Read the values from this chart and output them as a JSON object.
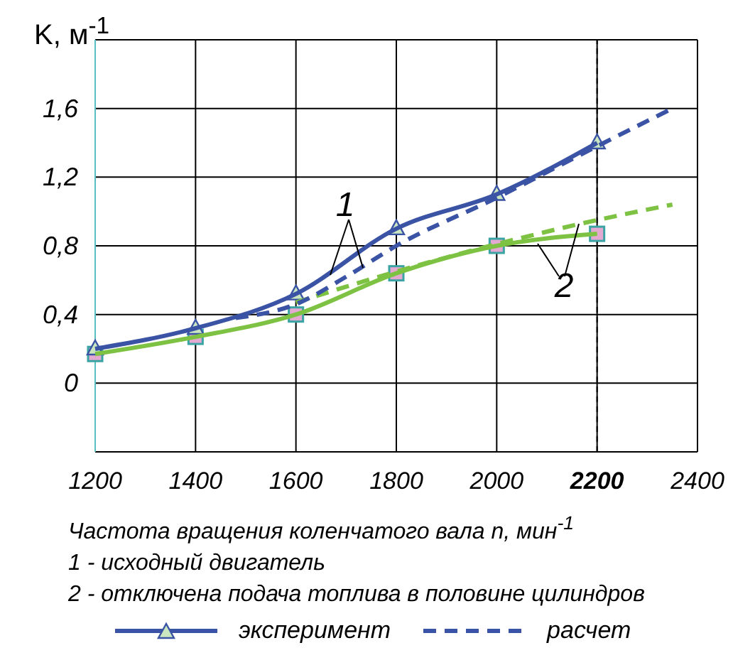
{
  "chart_data": {
    "type": "line",
    "ylabel": "K, м$^{-1}$",
    "xlabel": "Частота вращения коленчатого вала n, мин$^{-1}$",
    "xlim": [
      1200,
      2400
    ],
    "xticks": [
      1200,
      1400,
      1600,
      1800,
      2000,
      2200,
      2400
    ],
    "ylim": [
      -0.4,
      2
    ],
    "yticks": [
      {
        "value": -0.4,
        "label": null
      },
      0,
      {
        "value": 0.4,
        "label": "0,4"
      },
      {
        "value": 0.8,
        "label": "0,8"
      },
      {
        "value": 1.2,
        "label": "1,2"
      },
      {
        "value": 1.6,
        "label": "1,6"
      },
      {
        "value": 2,
        "label": null
      }
    ],
    "grid": true,
    "legend": "bottom",
    "ref_lines": [
      {
        "axis": "x",
        "value": 2200,
        "color": "#000000",
        "line_style": "dashed"
      }
    ],
    "series": [
      {
        "color": "#7dc242",
        "line_style": "solid",
        "marker": "square",
        "x": [
          1200,
          1400,
          1600,
          1800,
          2000,
          2200
        ],
        "values": [
          0.17,
          0.27,
          0.4,
          0.64,
          0.8,
          0.87
        ]
      },
      {
        "color": "#7dc242",
        "line_style": "dashed",
        "marker": "none",
        "x": [
          1600,
          1800,
          2000,
          2200,
          2350
        ],
        "values": [
          0.47,
          0.65,
          0.81,
          0.95,
          1.04
        ]
      },
      {
        "name": "эксперимент",
        "color": "#3a53a4",
        "line_style": "solid",
        "marker": "triangle",
        "x": [
          1200,
          1400,
          1600,
          1800,
          2000,
          2200
        ],
        "values": [
          0.2,
          0.32,
          0.52,
          0.9,
          1.1,
          1.4
        ]
      },
      {
        "name": "расчет",
        "color": "#3a53a4",
        "line_style": "dashed",
        "marker": "none",
        "x": [
          1480,
          1600,
          1700,
          1800,
          2000,
          2200,
          2350
        ],
        "values": [
          0.38,
          0.46,
          0.62,
          0.8,
          1.08,
          1.38,
          1.6
        ]
      }
    ],
    "annotations": [
      "1",
      "2",
      "1 - исходный двигатель",
      "2 - отключена подача топлива в половине цилиндров"
    ]
  }
}
